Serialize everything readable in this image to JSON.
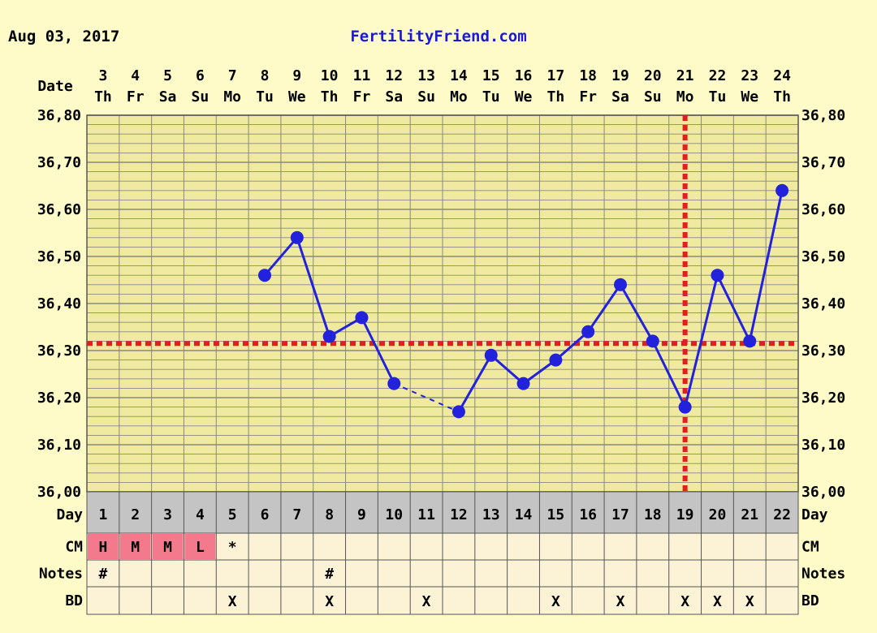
{
  "header": {
    "date_stamp": "Aug 03, 2017",
    "site": "FertilityFriend.com"
  },
  "row_labels": {
    "date": "Date",
    "day": "Day",
    "cm": "CM",
    "notes": "Notes",
    "bd": "BD"
  },
  "colors": {
    "background": "#fefbc9",
    "plot_area": "#f0e9a0",
    "grid": "#8a8a7a",
    "line": "#2222dd",
    "coverline": "#e02020",
    "day_row": "#c4c4c4",
    "table_row": "#fcf3d6",
    "cm_highlight": "#f27a8c",
    "site_text": "#1a1ad6"
  },
  "chart_data": {
    "type": "line",
    "title": "",
    "xlabel": "Date",
    "ylabel": "",
    "x_dates": [
      "3",
      "4",
      "5",
      "6",
      "7",
      "8",
      "9",
      "10",
      "11",
      "12",
      "13",
      "14",
      "15",
      "16",
      "17",
      "18",
      "19",
      "20",
      "21",
      "22",
      "23",
      "24"
    ],
    "x_weekdays": [
      "Th",
      "Fr",
      "Sa",
      "Su",
      "Mo",
      "Tu",
      "We",
      "Th",
      "Fr",
      "Sa",
      "Su",
      "Mo",
      "Tu",
      "We",
      "Th",
      "Fr",
      "Sa",
      "Su",
      "Mo",
      "Tu",
      "We",
      "Th"
    ],
    "cycle_days": [
      "1",
      "2",
      "3",
      "4",
      "5",
      "6",
      "7",
      "8",
      "9",
      "10",
      "11",
      "12",
      "13",
      "14",
      "15",
      "16",
      "17",
      "18",
      "19",
      "20",
      "21",
      "22"
    ],
    "series": [
      {
        "values": [
          null,
          null,
          null,
          null,
          null,
          36.46,
          36.54,
          36.33,
          36.37,
          36.23,
          null,
          36.17,
          36.29,
          36.23,
          36.28,
          36.34,
          36.44,
          36.32,
          36.18,
          36.46,
          36.32,
          36.64
        ]
      }
    ],
    "gap_segments": [
      [
        9,
        11
      ]
    ],
    "ylim": [
      36.0,
      36.8
    ],
    "yticks": [
      "36,00",
      "36,10",
      "36,20",
      "36,30",
      "36,40",
      "36,50",
      "36,60",
      "36,70",
      "36,80"
    ],
    "coverline_temp": 36.315,
    "ovulation_day_index": 18,
    "grid": true
  },
  "cm_row": [
    "H",
    "M",
    "M",
    "L",
    "*",
    "",
    "",
    "",
    "",
    "",
    "",
    "",
    "",
    "",
    "",
    "",
    "",
    "",
    "",
    "",
    "",
    ""
  ],
  "cm_highlighted": [
    true,
    true,
    true,
    true,
    false,
    false,
    false,
    false,
    false,
    false,
    false,
    false,
    false,
    false,
    false,
    false,
    false,
    false,
    false,
    false,
    false,
    false
  ],
  "notes_row": [
    "#",
    "",
    "",
    "",
    "",
    "",
    "",
    "#",
    "",
    "",
    "",
    "",
    "",
    "",
    "",
    "",
    "",
    "",
    "",
    "",
    "",
    ""
  ],
  "bd_row": [
    "",
    "",
    "",
    "",
    "X",
    "",
    "",
    "X",
    "",
    "",
    "X",
    "",
    "",
    "",
    "X",
    "",
    "X",
    "",
    "X",
    "X",
    "X",
    ""
  ]
}
